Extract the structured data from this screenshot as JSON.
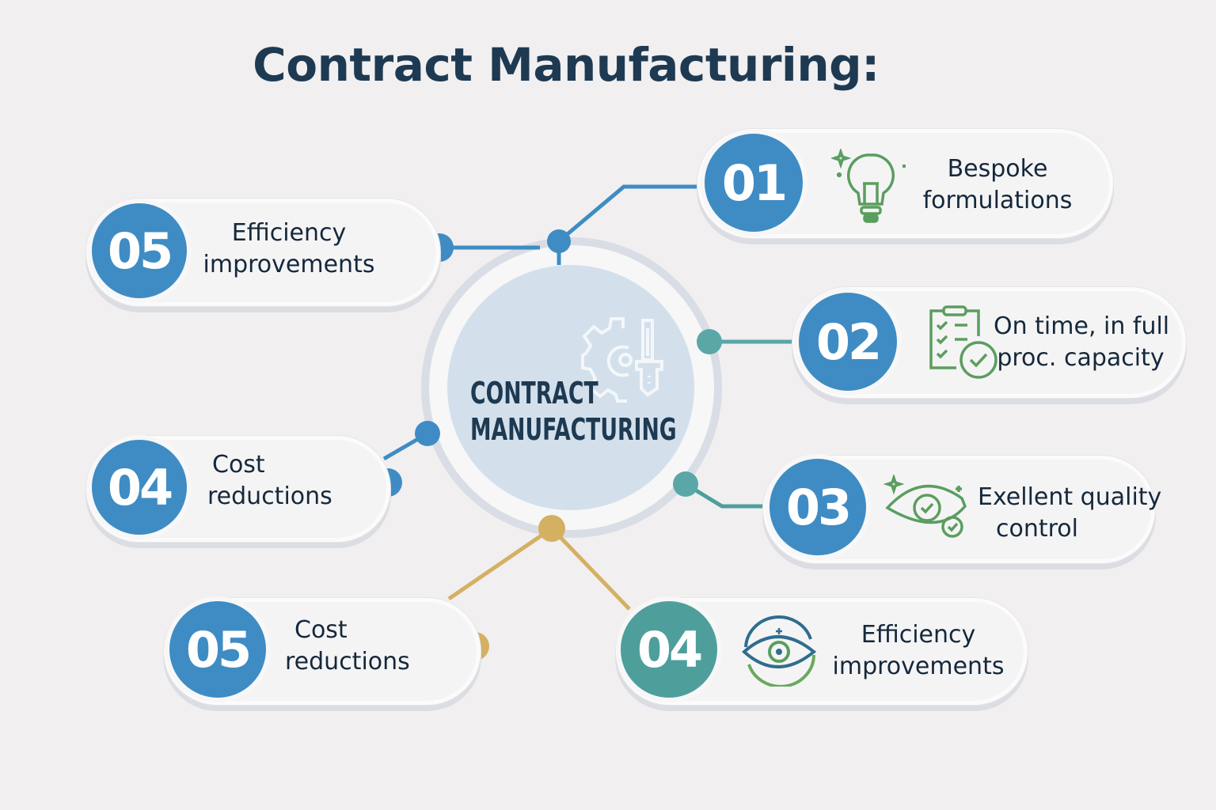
{
  "title": "Contract Manufacturing:",
  "center": {
    "line1": "CONTRACT",
    "line2": "MANUFACTURING",
    "icon": "gear-and-tool-icon"
  },
  "colors": {
    "blue": "#3f8cc4",
    "teal": "#4e9f9c",
    "gold": "#d4b062",
    "icon_green": "#5a9e5f",
    "title": "#1e3a52"
  },
  "items": [
    {
      "number": "01",
      "line1": "Bespoke",
      "line2": "formulations",
      "icon": "lightbulb-icon"
    },
    {
      "number": "05",
      "line1": "Efficiency",
      "line2": "improvements"
    },
    {
      "number": "02",
      "line1": "On time, in full",
      "line2": "proc. capacity",
      "icon": "clipboard-check-icon"
    },
    {
      "number": "04",
      "line1": "Cost",
      "line2": "reductions"
    },
    {
      "number": "03",
      "line1": "Exellent quality",
      "line2": "control",
      "icon": "eye-check-icon"
    },
    {
      "number": "05",
      "line1": "Cost",
      "line2": "reductions"
    },
    {
      "number": "04",
      "line1": "Efficiency",
      "line2": "improvements",
      "icon": "eye-cycle-icon"
    }
  ]
}
